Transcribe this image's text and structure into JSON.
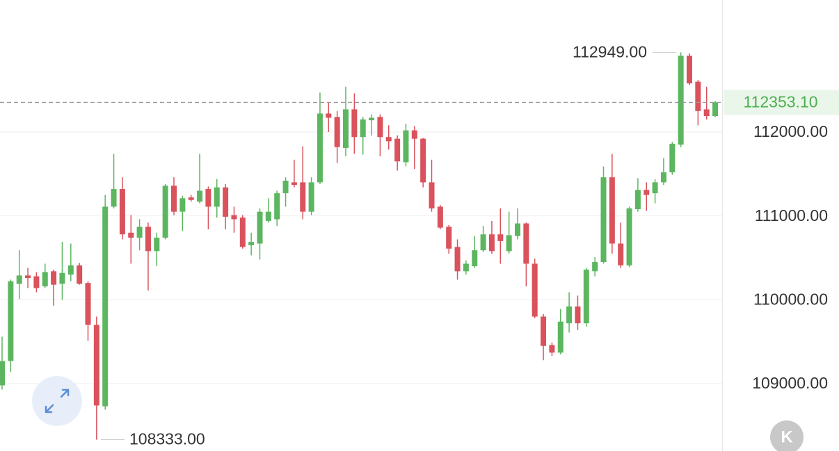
{
  "chart_data": {
    "type": "candlestick",
    "up_color": "#5cb660",
    "down_color": "#d9525c",
    "ylim": [
      108197,
      113574
    ],
    "yticks": [
      {
        "value": 109000,
        "label": "109000.00"
      },
      {
        "value": 110000,
        "label": "110000.00"
      },
      {
        "value": 111000,
        "label": "111000.00"
      },
      {
        "value": 112000,
        "label": "112000.00"
      }
    ],
    "grid": true,
    "open": [
      108980,
      109270,
      110190,
      110290,
      110280,
      110160,
      110340,
      110190,
      110300,
      110410,
      110200,
      109700,
      108730,
      111110,
      111320,
      110800,
      110740,
      110870,
      110580,
      110740,
      111360,
      111050,
      111220,
      111170,
      111320,
      111110,
      111340,
      111010,
      110980,
      110650,
      110670,
      110940,
      110960,
      111270,
      111400,
      111400,
      111050,
      111400,
      112220,
      112180,
      111810,
      112270,
      111940,
      112140,
      112180,
      111940,
      111920,
      111640,
      112020,
      111920,
      111400,
      111110,
      110870,
      110630,
      110340,
      110400,
      110590,
      110780,
      110780,
      110580,
      110760,
      110910,
      110430,
      109800,
      109460,
      109370,
      109720,
      109920,
      109720,
      110340,
      110450,
      111460,
      110670,
      110410,
      111080,
      111310,
      111270,
      111400,
      111520,
      111850,
      112910,
      112600,
      112270,
      112190
    ],
    "high": [
      109560,
      110240,
      110590,
      110380,
      110330,
      110430,
      110360,
      110690,
      110670,
      110440,
      110220,
      109800,
      111250,
      111740,
      111460,
      111010,
      110960,
      110920,
      110800,
      111380,
      111460,
      111240,
      111250,
      111740,
      111350,
      111440,
      111380,
      111110,
      111010,
      110800,
      111090,
      111210,
      111300,
      111460,
      111670,
      111830,
      111460,
      112470,
      112350,
      112250,
      112540,
      112460,
      112180,
      112210,
      112210,
      112080,
      111960,
      112100,
      112070,
      111930,
      111670,
      111130,
      110890,
      110720,
      110470,
      110760,
      110880,
      110940,
      111090,
      111050,
      111090,
      110920,
      110490,
      109830,
      109490,
      109890,
      110090,
      110050,
      110380,
      110510,
      111590,
      111740,
      110920,
      111110,
      111450,
      111400,
      111440,
      111690,
      111880,
      112949,
      112940,
      112620,
      112540,
      112370
    ],
    "low": [
      108930,
      109140,
      110010,
      110140,
      110090,
      110140,
      109930,
      110000,
      110220,
      110180,
      109510,
      108333,
      108690,
      111090,
      110720,
      110430,
      110590,
      110110,
      110400,
      110720,
      111010,
      110820,
      111170,
      111150,
      110840,
      110980,
      110840,
      110800,
      110610,
      110530,
      110480,
      110920,
      110880,
      111110,
      111340,
      110960,
      111010,
      111380,
      112000,
      111630,
      111710,
      111740,
      111730,
      111960,
      111710,
      111790,
      111540,
      111590,
      111560,
      111340,
      111050,
      110840,
      110550,
      110240,
      110300,
      110380,
      110570,
      110550,
      110430,
      110550,
      110720,
      110160,
      109780,
      109280,
      109330,
      109350,
      109610,
      109640,
      109680,
      110280,
      110430,
      110550,
      110380,
      110390,
      111050,
      111060,
      111150,
      111370,
      111490,
      111820,
      112560,
      112080,
      112150,
      112180
    ],
    "close": [
      109270,
      110220,
      110290,
      110260,
      110140,
      110330,
      110180,
      110320,
      110410,
      110190,
      109700,
      108740,
      111110,
      111320,
      110780,
      110740,
      110870,
      110580,
      110740,
      111360,
      111050,
      111210,
      111190,
      111300,
      111110,
      111340,
      110990,
      110960,
      110630,
      110690,
      111050,
      111050,
      111270,
      111420,
      111370,
      111050,
      111400,
      112220,
      112170,
      111820,
      112270,
      111940,
      112150,
      112170,
      111940,
      111890,
      111650,
      112020,
      111920,
      111400,
      111090,
      110860,
      110610,
      110340,
      110430,
      110590,
      110780,
      110580,
      110700,
      110770,
      110910,
      110430,
      109800,
      109450,
      109370,
      109740,
      109920,
      109720,
      110360,
      110450,
      111460,
      110670,
      110410,
      111090,
      111310,
      111250,
      111400,
      111520,
      111860,
      112910,
      112580,
      112250,
      112190,
      112353.1
    ],
    "max_label": {
      "value": 112949,
      "label": "112949.00"
    },
    "min_label": {
      "value": 108333,
      "label": "108333.00"
    },
    "last_price": {
      "value": 112353.1,
      "label": "112353.10"
    }
  },
  "controls": {
    "k_button": "K"
  }
}
